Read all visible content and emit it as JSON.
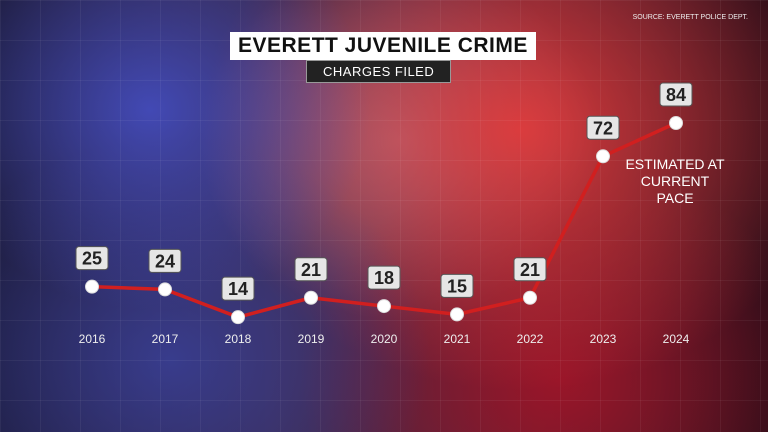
{
  "chart_data": {
    "type": "line",
    "title": "EVERETT JUVENILE CRIME",
    "subtitle": "CHARGES FILED",
    "source": "SOURCE: EVERETT POLICE DEPT.",
    "annotation": "ESTIMATED AT CURRENT PACE",
    "categories": [
      "2016",
      "2017",
      "2018",
      "2019",
      "2020",
      "2021",
      "2022",
      "2023",
      "2024"
    ],
    "values": [
      25,
      24,
      14,
      21,
      18,
      15,
      21,
      72,
      84
    ],
    "color": "#d11f1f"
  }
}
